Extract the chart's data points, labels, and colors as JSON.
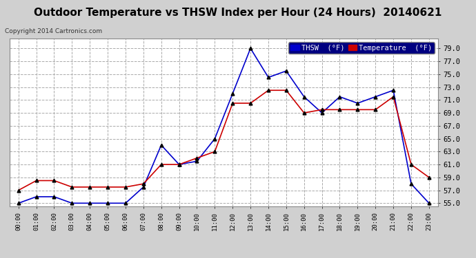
{
  "hours": [
    "00:00",
    "01:00",
    "02:00",
    "03:00",
    "04:00",
    "05:00",
    "06:00",
    "07:00",
    "08:00",
    "09:00",
    "10:00",
    "11:00",
    "12:00",
    "13:00",
    "14:00",
    "15:00",
    "16:00",
    "17:00",
    "18:00",
    "19:00",
    "20:00",
    "21:00",
    "22:00",
    "23:00"
  ],
  "thsw": [
    55.0,
    56.0,
    56.0,
    55.0,
    55.0,
    55.0,
    55.0,
    57.5,
    64.0,
    61.0,
    61.5,
    65.0,
    72.0,
    79.0,
    74.5,
    75.5,
    71.5,
    69.0,
    71.5,
    70.5,
    71.5,
    72.5,
    58.0,
    55.0
  ],
  "temp": [
    57.0,
    58.5,
    58.5,
    57.5,
    57.5,
    57.5,
    57.5,
    58.0,
    61.0,
    61.0,
    62.0,
    63.0,
    70.5,
    70.5,
    72.5,
    72.5,
    69.0,
    69.5,
    69.5,
    69.5,
    69.5,
    71.5,
    61.0,
    59.0
  ],
  "thsw_color": "#0000cc",
  "temp_color": "#cc0000",
  "fig_background": "#d0d0d0",
  "plot_bg": "#ffffff",
  "title": "Outdoor Temperature vs THSW Index per Hour (24 Hours)  20140621",
  "title_fontsize": 11,
  "copyright": "Copyright 2014 Cartronics.com",
  "legend_thsw": "THSW  (°F)",
  "legend_temp": "Temperature  (°F)",
  "ylim": [
    54.5,
    80.5
  ],
  "yticks": [
    55.0,
    57.0,
    59.0,
    61.0,
    63.0,
    65.0,
    67.0,
    69.0,
    71.0,
    73.0,
    75.0,
    77.0,
    79.0
  ],
  "marker": "^",
  "marker_color": "#000000",
  "marker_size": 3.5,
  "line_width": 1.2
}
